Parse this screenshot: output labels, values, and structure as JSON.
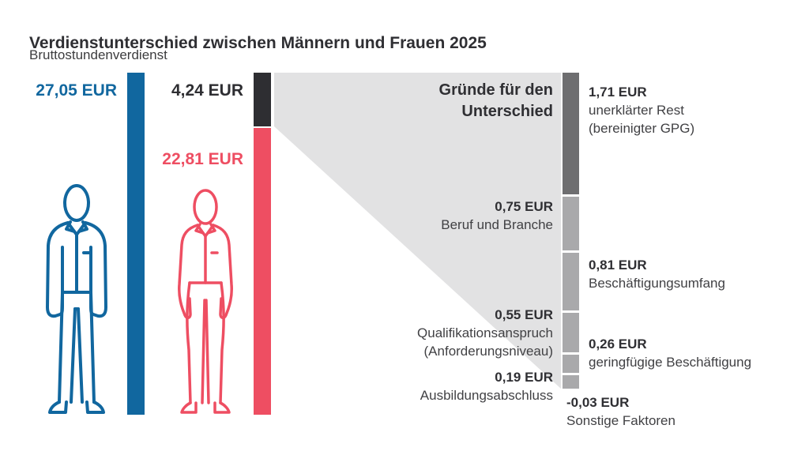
{
  "title": "Verdienstunterschied zwischen Männern und Frauen 2025",
  "subtitle": "Bruttostundenverdienst",
  "breakdown_heading": {
    "line1": "Gründe für den",
    "line2": "Unterschied"
  },
  "colors": {
    "men_blue": "#11679f",
    "women_red": "#ee4e62",
    "gap_black": "#2e2e32",
    "unexplained_dark_gray": "#6e6e70",
    "factor_light_gray": "#a9a9ab",
    "funnel_gray": "#e2e2e3",
    "text_dark": "#2f2f33"
  },
  "chart_data": {
    "type": "bar",
    "title": "Verdienstunterschied zwischen Männern und Frauen 2025",
    "subtitle": "Bruttostundenverdienst",
    "unit": "EUR",
    "bars": [
      {
        "name": "Männer Bruttostundenverdienst",
        "value": 27.05,
        "label": "27,05 EUR",
        "color": "#11679f"
      },
      {
        "name": "Frauen Bruttostundenverdienst",
        "value": 22.81,
        "label": "22,81 EUR",
        "color": "#ee4e62"
      },
      {
        "name": "Verdienstunterschied",
        "value": 4.24,
        "label": "4,24 EUR",
        "color": "#2e2e32"
      }
    ],
    "breakdown_title": "Gründe für den Unterschied",
    "breakdown": [
      {
        "value": 1.71,
        "label": "1,71 EUR",
        "desc1": "unerklärter Rest",
        "desc2": "(bereinigter GPG)",
        "color": "#6e6e70",
        "label_side": "right"
      },
      {
        "value": 0.75,
        "label": "0,75 EUR",
        "desc1": "Beruf und Branche",
        "color": "#a9a9ab",
        "label_side": "left"
      },
      {
        "value": 0.81,
        "label": "0,81 EUR",
        "desc1": "Beschäftigungsumfang",
        "color": "#a9a9ab",
        "label_side": "right"
      },
      {
        "value": 0.55,
        "label": "0,55 EUR",
        "desc1": "Qualifikationsanspruch",
        "desc2": "(Anforderungsniveau)",
        "color": "#a9a9ab",
        "label_side": "left"
      },
      {
        "value": 0.26,
        "label": "0,26 EUR",
        "desc1": "geringfügige Beschäftigung",
        "color": "#a9a9ab",
        "label_side": "right"
      },
      {
        "value": 0.19,
        "label": "0,19 EUR",
        "desc1": "Ausbildungsabschluss",
        "color": "#a9a9ab",
        "label_side": "left"
      },
      {
        "value": -0.03,
        "label": "-0,03 EUR",
        "desc1": "Sonstige Faktoren",
        "color": null,
        "label_side": "below"
      }
    ],
    "layout": {
      "grid": false,
      "legend": false,
      "orientation": "vertical"
    }
  }
}
